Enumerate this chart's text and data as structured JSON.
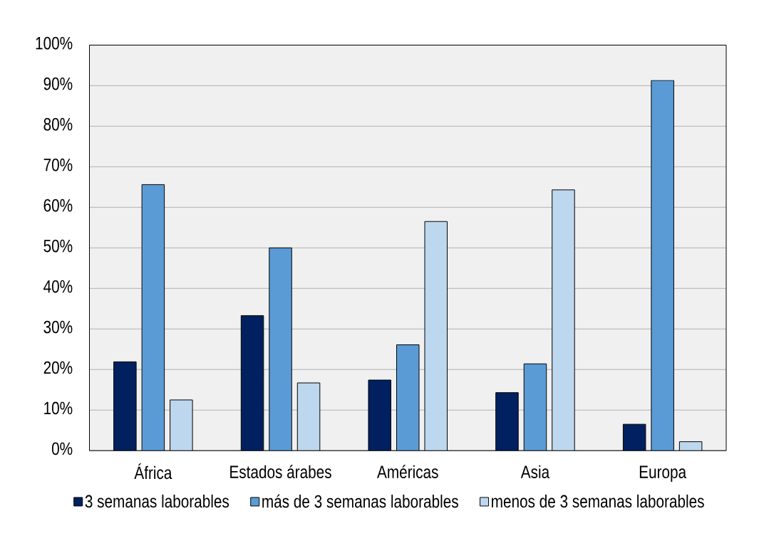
{
  "chart_data": {
    "type": "bar",
    "categories": [
      "África",
      "Estados árabes",
      "Américas",
      "Asia",
      "Europa"
    ],
    "series": [
      {
        "name": "3 semanas laborables",
        "color": "#002060",
        "values": [
          21.9,
          33.3,
          17.4,
          14.3,
          6.5
        ]
      },
      {
        "name": "más de 3 semanas laborables",
        "color": "#5b9bd5",
        "values": [
          65.6,
          50.0,
          26.1,
          21.4,
          91.3
        ]
      },
      {
        "name": "menos de 3 semanas laborables",
        "color": "#bdd7ee",
        "values": [
          12.5,
          16.7,
          56.5,
          64.3,
          2.2
        ]
      }
    ],
    "ylim": [
      0,
      100
    ],
    "yticks": [
      {
        "value": 0,
        "label": "0%"
      },
      {
        "value": 10,
        "label": "10%"
      },
      {
        "value": 20,
        "label": "20%"
      },
      {
        "value": 30,
        "label": "30%"
      },
      {
        "value": 40,
        "label": "40%"
      },
      {
        "value": 50,
        "label": "50%"
      },
      {
        "value": 60,
        "label": "60%"
      },
      {
        "value": 70,
        "label": "70%"
      },
      {
        "value": 80,
        "label": "80%"
      },
      {
        "value": 90,
        "label": "90%"
      },
      {
        "value": 100,
        "label": "100%"
      }
    ],
    "grid": "y",
    "legend": "bottom"
  }
}
